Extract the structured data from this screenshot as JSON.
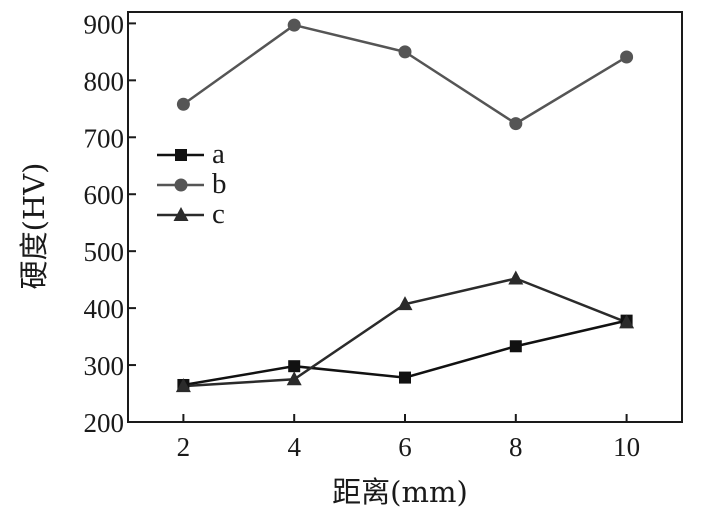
{
  "chart_data": {
    "type": "line",
    "xlabel": "距离(mm)",
    "ylabel": "硬度(HV)",
    "x": [
      2,
      4,
      6,
      8,
      10
    ],
    "xticks": [
      "2",
      "4",
      "6",
      "8",
      "10"
    ],
    "yticks": [
      "200",
      "300",
      "400",
      "500",
      "600",
      "700",
      "800",
      "900"
    ],
    "xlim": [
      1,
      11
    ],
    "ylim": [
      200,
      920
    ],
    "grid": false,
    "legend_position": "upper-left",
    "series": [
      {
        "name": "a",
        "marker": "square",
        "color": "#111111",
        "values": [
          265,
          298,
          278,
          333,
          378
        ]
      },
      {
        "name": "b",
        "marker": "circle",
        "color": "#555555",
        "values": [
          758,
          897,
          850,
          724,
          841
        ]
      },
      {
        "name": "c",
        "marker": "triangle",
        "color": "#2b2b2b",
        "values": [
          263,
          275,
          407,
          452,
          375
        ]
      }
    ]
  }
}
